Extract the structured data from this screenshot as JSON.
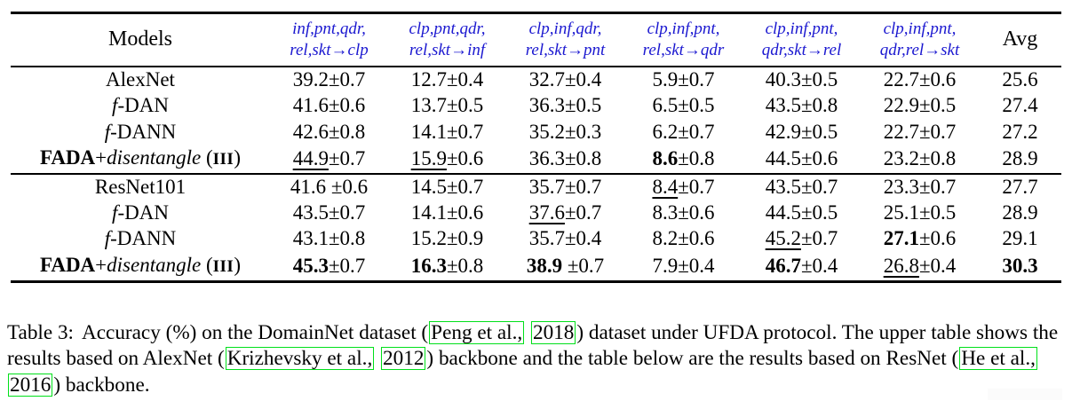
{
  "colors": {
    "header_text": "#1b18d0",
    "cite_box": "#00e01a",
    "rule": "#000000",
    "body_text": "#000000",
    "background": "#ffffff"
  },
  "table": {
    "models_header": "Models",
    "avg_header": "Avg",
    "columns": [
      {
        "line1": "inf,pnt,qdr,",
        "line2": "rel,skt→clp"
      },
      {
        "line1": "clp,pnt,qdr,",
        "line2": "rel,skt→inf"
      },
      {
        "line1": "clp,inf,qdr,",
        "line2": "rel,skt→pnt"
      },
      {
        "line1": "clp,inf,pnt,",
        "line2": "rel,skt→qdr"
      },
      {
        "line1": "clp,inf,pnt,",
        "line2": "qdr,skt→rel"
      },
      {
        "line1": "clp,inf,pnt,",
        "line2": "qdr,rel→skt"
      }
    ],
    "sections": [
      {
        "name": "AlexNet backbone",
        "rows": [
          {
            "model": [
              {
                "t": "AlexNet"
              }
            ],
            "cells": [
              {
                "v": "39.2",
                "e": "0.7"
              },
              {
                "v": "12.7",
                "e": "0.4"
              },
              {
                "v": "32.7",
                "e": "0.4"
              },
              {
                "v": "5.9",
                "e": "0.7"
              },
              {
                "v": "40.3",
                "e": "0.5"
              },
              {
                "v": "22.7",
                "e": "0.6"
              }
            ],
            "avg": {
              "v": "25.6"
            }
          },
          {
            "model": [
              {
                "t": "f",
                "i": true
              },
              {
                "t": "-DAN"
              }
            ],
            "cells": [
              {
                "v": "41.6",
                "e": "0.6"
              },
              {
                "v": "13.7",
                "e": "0.5"
              },
              {
                "v": "36.3",
                "e": "0.5"
              },
              {
                "v": "6.5",
                "e": "0.5"
              },
              {
                "v": "43.5",
                "e": "0.8"
              },
              {
                "v": "22.9",
                "e": "0.5"
              }
            ],
            "avg": {
              "v": "27.4"
            }
          },
          {
            "model": [
              {
                "t": "f",
                "i": true
              },
              {
                "t": "-DANN"
              }
            ],
            "cells": [
              {
                "v": "42.6",
                "e": "0.8"
              },
              {
                "v": "14.1",
                "e": "0.7"
              },
              {
                "v": "35.2",
                "e": "0.3"
              },
              {
                "v": "6.2",
                "e": "0.7"
              },
              {
                "v": "42.9",
                "e": "0.5"
              },
              {
                "v": "22.7",
                "e": "0.7"
              }
            ],
            "avg": {
              "v": "27.2"
            }
          },
          {
            "model": [
              {
                "t": "FADA",
                "b": true
              },
              {
                "t": "+"
              },
              {
                "t": "disentangle",
                "i": true
              },
              {
                "t": " ("
              },
              {
                "t": "III",
                "sc": true
              },
              {
                "t": ")"
              }
            ],
            "cells": [
              {
                "v": "44.9",
                "e": "0.7",
                "u": true
              },
              {
                "v": "15.9",
                "e": "0.6",
                "u": true
              },
              {
                "v": "36.3",
                "e": "0.8"
              },
              {
                "v": "8.6",
                "e": "0.8",
                "b": true
              },
              {
                "v": "44.5",
                "e": "0.6"
              },
              {
                "v": "23.2",
                "e": "0.8"
              }
            ],
            "avg": {
              "v": "28.9"
            }
          }
        ]
      },
      {
        "name": "ResNet backbone",
        "rows": [
          {
            "model": [
              {
                "t": "ResNet101"
              }
            ],
            "cells": [
              {
                "v": "41.6",
                "e": "0.6",
                "gap": true
              },
              {
                "v": "14.5",
                "e": "0.7"
              },
              {
                "v": "35.7",
                "e": "0.7"
              },
              {
                "v": "8.4",
                "e": "0.7",
                "u": true
              },
              {
                "v": "43.5",
                "e": "0.7"
              },
              {
                "v": "23.3",
                "e": "0.7"
              }
            ],
            "avg": {
              "v": "27.7"
            }
          },
          {
            "model": [
              {
                "t": "f",
                "i": true
              },
              {
                "t": "-DAN"
              }
            ],
            "cells": [
              {
                "v": "43.5",
                "e": "0.7"
              },
              {
                "v": "14.1",
                "e": "0.6"
              },
              {
                "v": "37.6",
                "e": "0.7",
                "u": true
              },
              {
                "v": "8.3",
                "e": "0.6"
              },
              {
                "v": "44.5",
                "e": "0.5"
              },
              {
                "v": "25.1",
                "e": "0.5"
              }
            ],
            "avg": {
              "v": "28.9"
            }
          },
          {
            "model": [
              {
                "t": "f",
                "i": true
              },
              {
                "t": "-DANN"
              }
            ],
            "cells": [
              {
                "v": "43.1",
                "e": "0.8"
              },
              {
                "v": "15.2",
                "e": "0.9"
              },
              {
                "v": "35.7",
                "e": "0.4"
              },
              {
                "v": "8.2",
                "e": "0.6"
              },
              {
                "v": "45.2",
                "e": "0.7",
                "u": true
              },
              {
                "v": "27.1",
                "e": "0.6",
                "b": true
              }
            ],
            "avg": {
              "v": "29.1"
            }
          },
          {
            "model": [
              {
                "t": "FADA",
                "b": true
              },
              {
                "t": "+"
              },
              {
                "t": "disentangle",
                "i": true
              },
              {
                "t": " ("
              },
              {
                "t": "III",
                "sc": true
              },
              {
                "t": ")"
              }
            ],
            "cells": [
              {
                "v": "45.3",
                "e": "0.7",
                "b": true
              },
              {
                "v": "16.3",
                "e": "0.8",
                "b": true
              },
              {
                "v": "38.9",
                "e": "0.7",
                "b": true,
                "gap": true
              },
              {
                "v": "7.9",
                "e": "0.4"
              },
              {
                "v": "46.7",
                "e": "0.4",
                "b": true
              },
              {
                "v": "26.8",
                "e": "0.4",
                "u": true
              }
            ],
            "avg": {
              "v": "30.3",
              "b": true
            }
          }
        ]
      }
    ]
  },
  "caption": {
    "runs": [
      {
        "t": "Table 3:",
        "cls": "label"
      },
      {
        "t": "Accuracy (%) on the DomainNet dataset ("
      },
      {
        "t": "Peng et al.,",
        "box": true
      },
      {
        "t": " "
      },
      {
        "t": "2018",
        "box": true
      },
      {
        "t": ") dataset under UFDA protocol. The upper table shows the results based on AlexNet ("
      },
      {
        "t": "Krizhevsky et al.,",
        "box": true
      },
      {
        "t": " "
      },
      {
        "t": "2012",
        "box": true
      },
      {
        "t": ") backbone and the table below are the results based on ResNet ("
      },
      {
        "t": "He et al.,",
        "box": true
      },
      {
        "t": " "
      },
      {
        "t": "2016",
        "box": true
      },
      {
        "t": ") backbone."
      }
    ]
  }
}
